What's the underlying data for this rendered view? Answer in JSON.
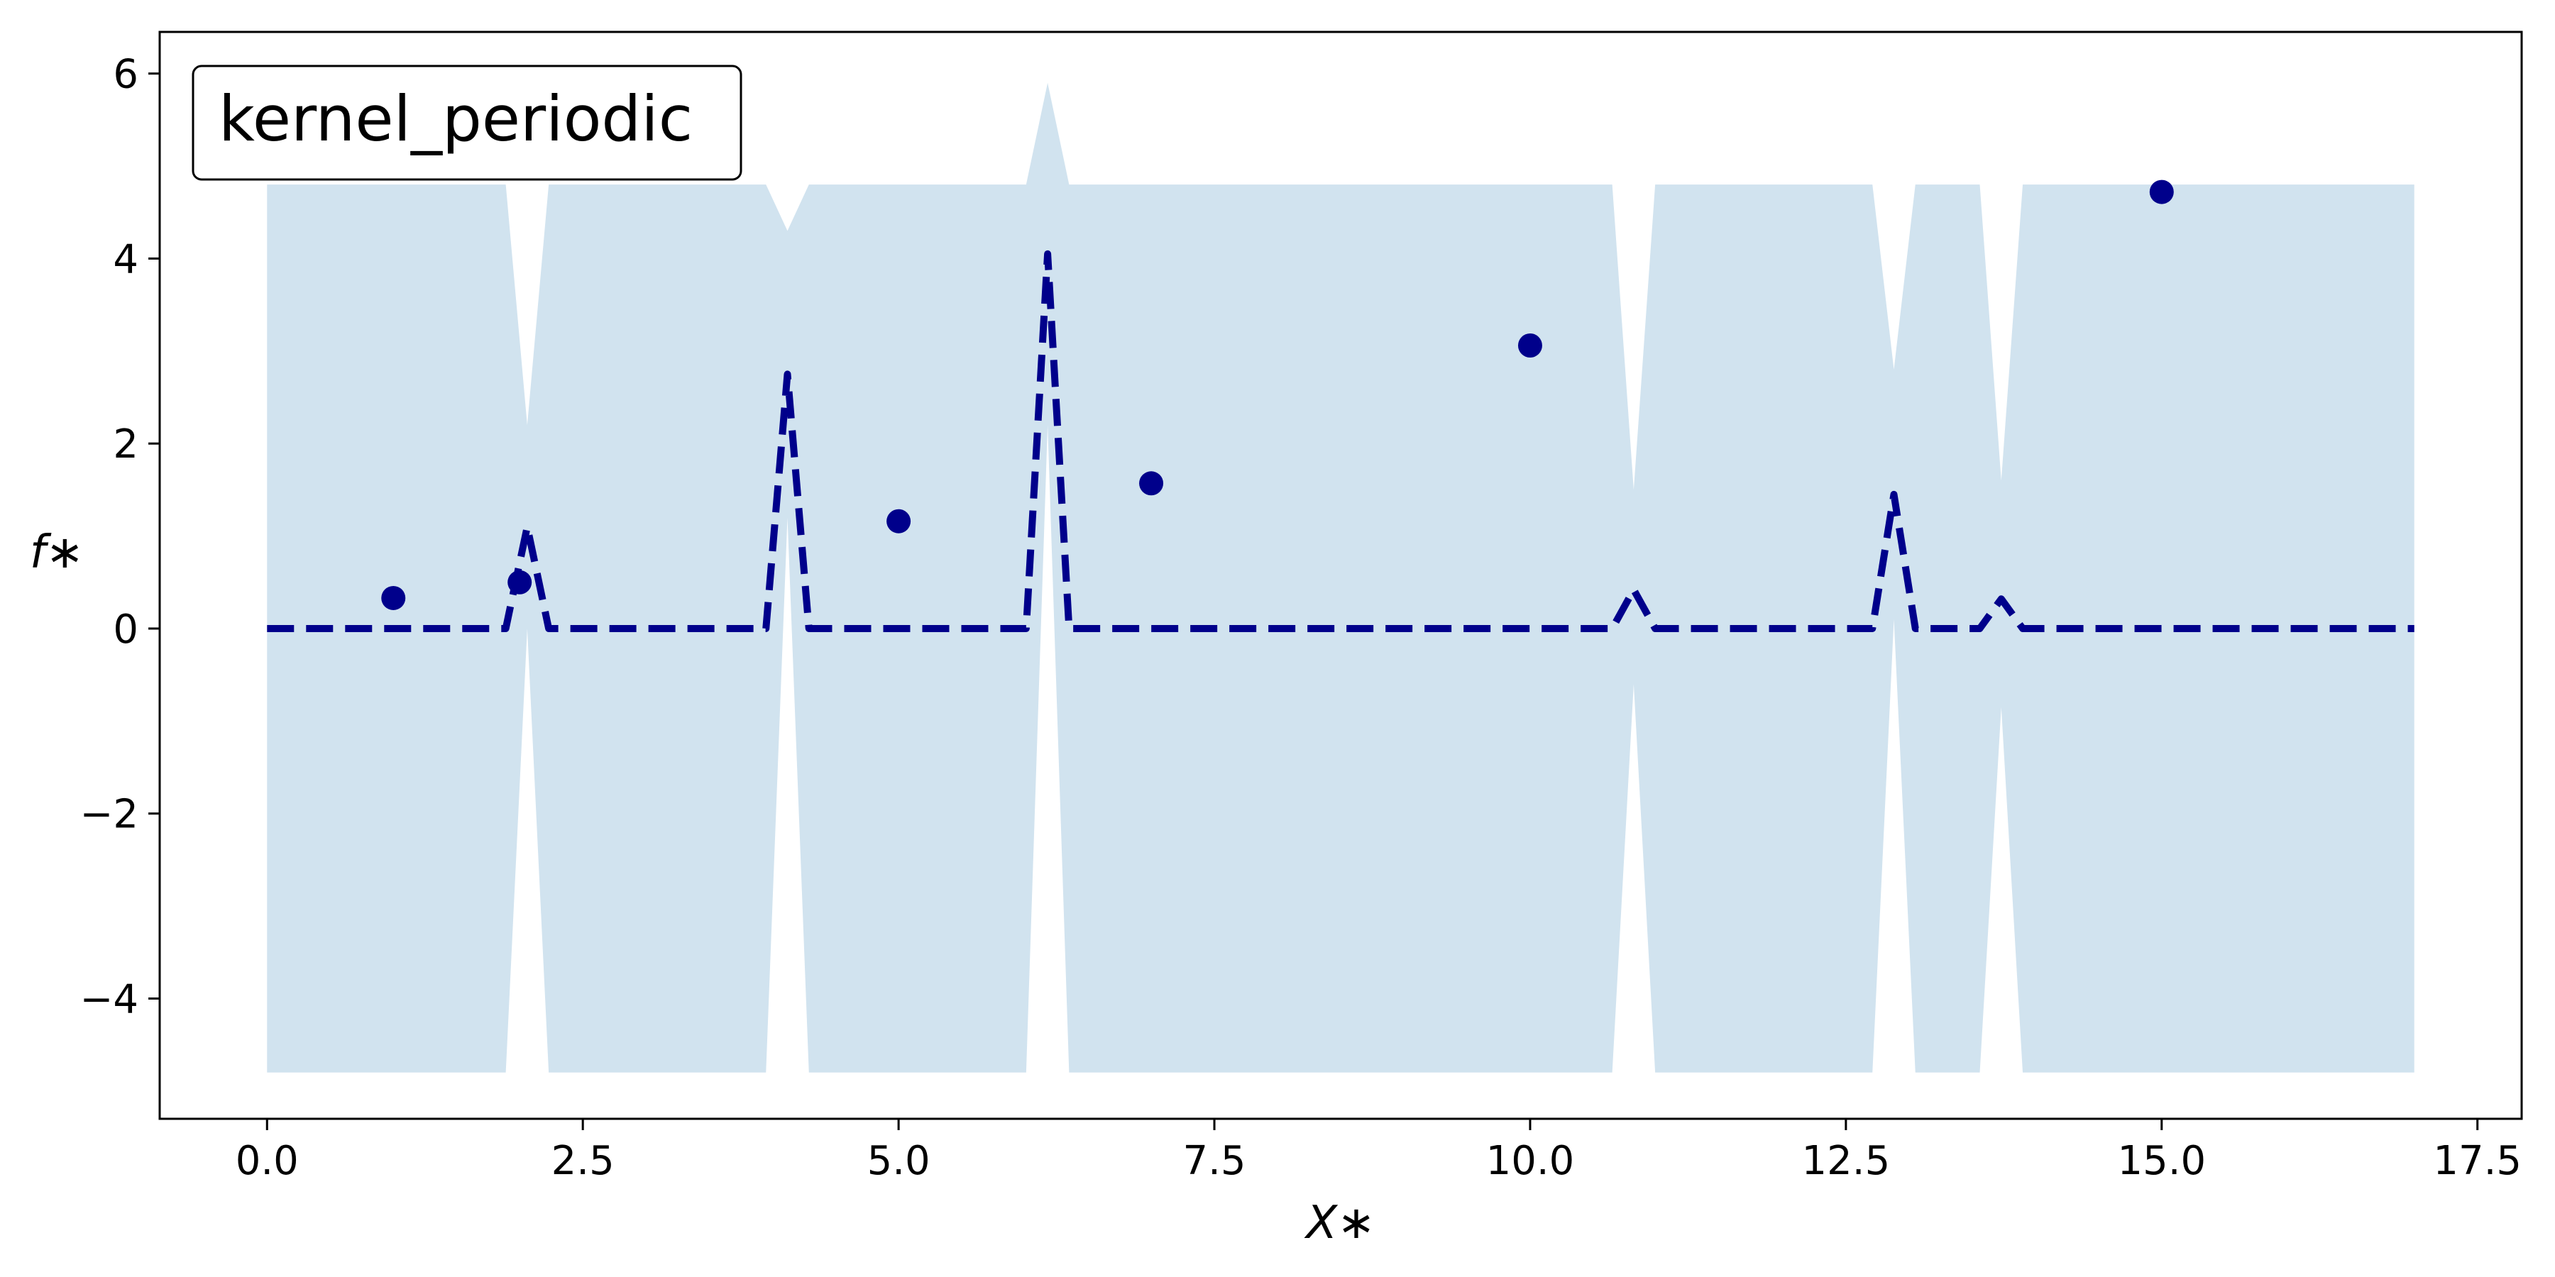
{
  "chart_data": {
    "type": "line",
    "title": "",
    "xlabel": "X∗",
    "ylabel": "f∗",
    "xlim": [
      -0.85,
      17.85
    ],
    "ylim": [
      -5.3,
      6.45
    ],
    "xticks": [
      0.0,
      2.5,
      5.0,
      7.5,
      10.0,
      12.5,
      15.0,
      17.5
    ],
    "xtick_labels": [
      "0.0",
      "2.5",
      "5.0",
      "7.5",
      "10.0",
      "12.5",
      "15.0",
      "17.5"
    ],
    "yticks": [
      -4,
      -2,
      0,
      2,
      4,
      6
    ],
    "ytick_labels": [
      "−4",
      "−2",
      "0",
      "2",
      "4",
      "6"
    ],
    "grid": false,
    "legend": {
      "text": "kernel_periodic",
      "placement": "top-left"
    },
    "colors": {
      "band": "#d1e3ef",
      "mean": "#00008b",
      "points": "#00008b"
    },
    "band": {
      "x": [
        0.0,
        1.89,
        2.06,
        2.23,
        3.95,
        4.12,
        4.29,
        6.01,
        6.18,
        6.35,
        10.65,
        10.82,
        10.99,
        12.71,
        12.88,
        13.05,
        13.56,
        13.73,
        13.9,
        17.0
      ],
      "upper": [
        4.8,
        4.8,
        2.2,
        4.8,
        4.8,
        4.3,
        4.8,
        4.8,
        5.9,
        4.8,
        4.8,
        1.5,
        4.8,
        4.8,
        2.8,
        4.8,
        4.8,
        1.6,
        4.8,
        4.8
      ],
      "lower": [
        -4.8,
        -4.8,
        0.0,
        -4.8,
        -4.8,
        1.2,
        -4.8,
        -4.8,
        2.2,
        -4.8,
        -4.8,
        -0.6,
        -4.8,
        -4.8,
        0.1,
        -4.8,
        -4.8,
        -0.85,
        -4.8,
        -4.8
      ]
    },
    "series": [
      {
        "kind": "mean",
        "x": [
          0.0,
          1.89,
          2.06,
          2.23,
          3.95,
          4.12,
          4.29,
          6.01,
          6.18,
          6.35,
          10.65,
          10.82,
          10.99,
          12.71,
          12.88,
          13.05,
          13.56,
          13.73,
          13.9,
          17.0
        ],
        "y": [
          0.0,
          0.0,
          1.1,
          0.0,
          0.0,
          2.75,
          0.0,
          0.0,
          4.05,
          0.0,
          0.0,
          0.42,
          0.0,
          0.0,
          1.45,
          0.0,
          0.0,
          0.32,
          0.0,
          0.0
        ]
      },
      {
        "kind": "observations",
        "x": [
          1.0,
          2.0,
          5.0,
          7.0,
          10.0,
          15.0
        ],
        "y": [
          0.33,
          0.5,
          1.16,
          1.57,
          3.06,
          4.72
        ]
      }
    ]
  }
}
